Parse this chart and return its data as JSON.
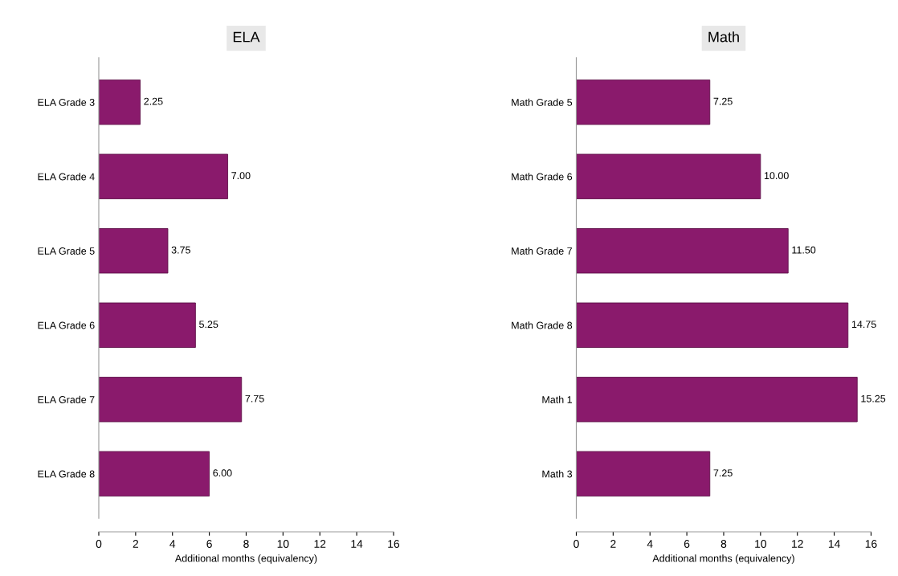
{
  "chart_data": [
    {
      "type": "bar",
      "orientation": "horizontal",
      "title": "ELA",
      "xlabel": "Additional months (equivalency)",
      "categories": [
        "ELA Grade 3",
        "ELA Grade 4",
        "ELA Grade 5",
        "ELA Grade 6",
        "ELA Grade 7",
        "ELA Grade 8"
      ],
      "values": [
        2.25,
        7.0,
        3.75,
        5.25,
        7.75,
        6.0
      ],
      "value_labels": [
        "2.25",
        "7.00",
        "3.75",
        "5.25",
        "7.75",
        "6.00"
      ],
      "color": "#8a1a6c",
      "xlim": [
        0,
        16
      ],
      "xticks": [
        0,
        2,
        4,
        6,
        8,
        10,
        12,
        14,
        16
      ],
      "grid": false
    },
    {
      "type": "bar",
      "orientation": "horizontal",
      "title": "Math",
      "xlabel": "Additional months (equivalency)",
      "categories": [
        "Math Grade 5",
        "Math Grade 6",
        "Math Grade 7",
        "Math Grade 8",
        "Math 1",
        "Math 3"
      ],
      "values": [
        7.25,
        10.0,
        11.5,
        14.75,
        15.25,
        7.25
      ],
      "value_labels": [
        "7.25",
        "10.00",
        "11.50",
        "14.75",
        "15.25",
        "7.25"
      ],
      "color": "#8a1a6c",
      "xlim": [
        0,
        16
      ],
      "xticks": [
        0,
        2,
        4,
        6,
        8,
        10,
        12,
        14,
        16
      ],
      "grid": false
    }
  ]
}
